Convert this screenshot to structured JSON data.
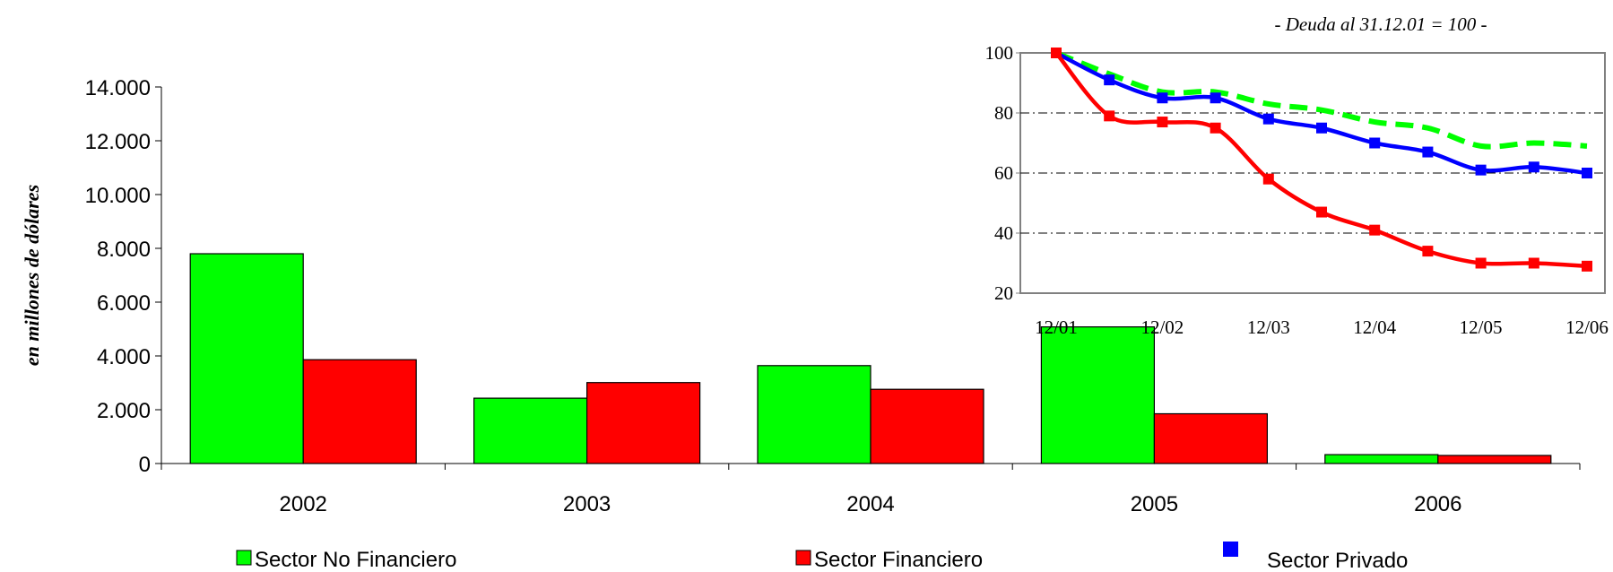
{
  "chart_data": [
    {
      "type": "bar",
      "ylabel": "en millones de dólares",
      "ylim": [
        0,
        14000
      ],
      "ytick_values": [
        0,
        2000,
        4000,
        6000,
        8000,
        10000,
        12000,
        14000
      ],
      "ytick_labels": [
        "0",
        "2.000",
        "4.000",
        "6.000",
        "8.000",
        "10.000",
        "12.000",
        "14.000"
      ],
      "categories": [
        "2002",
        "2003",
        "2004",
        "2005",
        "2006"
      ],
      "series": [
        {
          "name": "Sector No Financiero",
          "color": "#00ff00",
          "values": [
            7800,
            2430,
            3640,
            5080,
            330
          ]
        },
        {
          "name": "Sector Financiero",
          "color": "#ff0000",
          "values": [
            3860,
            3010,
            2760,
            1850,
            300
          ]
        }
      ],
      "grid": false,
      "legend_position": "bottom"
    },
    {
      "type": "line",
      "subtitle": "- Deuda al 31.12.01 = 100 -",
      "ylim": [
        20,
        100
      ],
      "ytick_values": [
        20,
        40,
        60,
        80,
        100
      ],
      "ytick_labels": [
        "20",
        "40",
        "60",
        "80",
        "100"
      ],
      "x_tick_labels": [
        "12/01",
        "12/02",
        "12/03",
        "12/04",
        "12/05",
        "12/06"
      ],
      "x": [
        0,
        0.5,
        1,
        1.5,
        2,
        2.5,
        3,
        3.5,
        4,
        4.5,
        5
      ],
      "series": [
        {
          "name": "Sector No Financiero",
          "color": "#00ff00",
          "style": "dashed",
          "markers": false,
          "values": [
            100,
            93,
            87,
            87,
            83,
            81,
            77,
            75,
            69,
            70,
            69
          ]
        },
        {
          "name": "Sector Privado",
          "color": "#0000ff",
          "style": "solid",
          "markers": true,
          "values": [
            100,
            91,
            85,
            85,
            78,
            75,
            70,
            67,
            61,
            62,
            60
          ]
        },
        {
          "name": "Sector Financiero",
          "color": "#ff0000",
          "style": "solid",
          "markers": true,
          "values": [
            100,
            79,
            77,
            75,
            58,
            47,
            41,
            34,
            30,
            30,
            29
          ]
        }
      ],
      "grid": "horizontal dash-dot",
      "legend_position": "none"
    }
  ],
  "legend": [
    {
      "label": "Sector No Financiero",
      "color": "#00ff00"
    },
    {
      "label": "Sector Financiero",
      "color": "#ff0000"
    },
    {
      "label": "Sector Privado",
      "color": "#0000ff"
    }
  ]
}
